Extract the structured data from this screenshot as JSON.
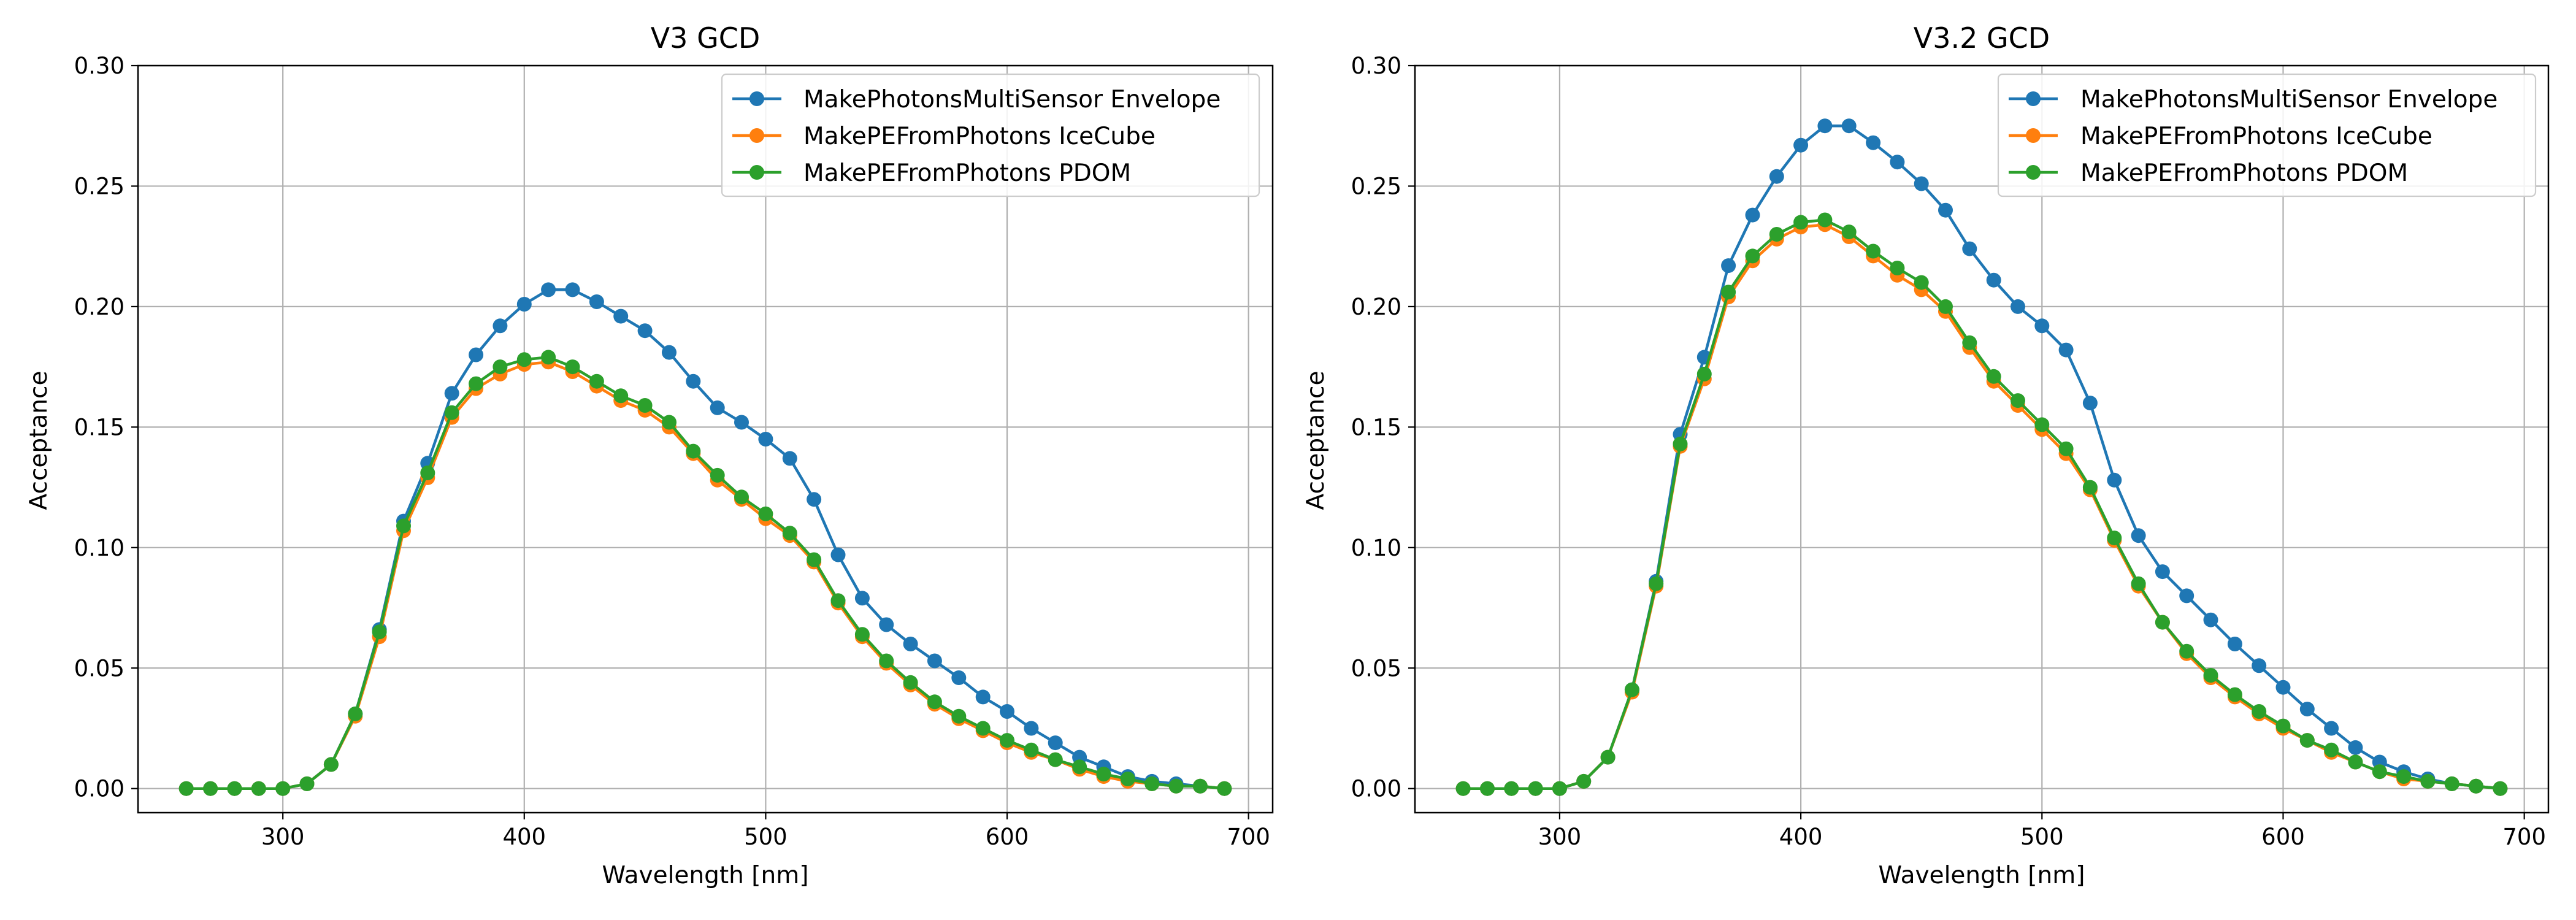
{
  "colors": {
    "envelope": "#1f77b4",
    "icecube": "#ff7f0e",
    "pdom": "#2ca02c",
    "grid": "#b0b0b0",
    "legend_border": "#cccccc"
  },
  "chart_data": [
    {
      "type": "line",
      "title": "V3 GCD",
      "xlabel": "Wavelength [nm]",
      "ylabel": "Acceptance",
      "xlim": [
        240,
        710
      ],
      "ylim": [
        -0.01,
        0.3
      ],
      "xticks": [
        300,
        400,
        500,
        600,
        700
      ],
      "yticks": [
        0.0,
        0.05,
        0.1,
        0.15,
        0.2,
        0.25,
        0.3
      ],
      "ytick_labels": [
        "0.00",
        "0.05",
        "0.10",
        "0.15",
        "0.20",
        "0.25",
        "0.30"
      ],
      "grid": true,
      "legend_position": "top-right",
      "x": [
        260,
        270,
        280,
        290,
        300,
        310,
        320,
        330,
        340,
        350,
        360,
        370,
        380,
        390,
        400,
        410,
        420,
        430,
        440,
        450,
        460,
        470,
        480,
        490,
        500,
        510,
        520,
        530,
        540,
        550,
        560,
        570,
        580,
        590,
        600,
        610,
        620,
        630,
        640,
        650,
        660,
        670,
        680,
        690
      ],
      "series": [
        {
          "name": "MakePhotonsMultiSensor Envelope",
          "color_key": "envelope",
          "values": [
            0.0,
            0.0,
            0.0,
            0.0,
            0.0,
            0.002,
            0.01,
            0.031,
            0.066,
            0.111,
            0.135,
            0.164,
            0.18,
            0.192,
            0.201,
            0.207,
            0.207,
            0.202,
            0.196,
            0.19,
            0.181,
            0.169,
            0.158,
            0.152,
            0.145,
            0.137,
            0.12,
            0.097,
            0.079,
            0.068,
            0.06,
            0.053,
            0.046,
            0.038,
            0.032,
            0.025,
            0.019,
            0.013,
            0.009,
            0.005,
            0.003,
            0.002,
            0.001,
            0.0
          ]
        },
        {
          "name": "MakePEFromPhotons IceCube",
          "color_key": "icecube",
          "values": [
            0.0,
            0.0,
            0.0,
            0.0,
            0.0,
            0.002,
            0.01,
            0.03,
            0.063,
            0.107,
            0.129,
            0.154,
            0.166,
            0.172,
            0.176,
            0.177,
            0.173,
            0.167,
            0.161,
            0.157,
            0.15,
            0.139,
            0.128,
            0.12,
            0.112,
            0.105,
            0.094,
            0.077,
            0.063,
            0.052,
            0.043,
            0.035,
            0.029,
            0.024,
            0.019,
            0.015,
            0.012,
            0.008,
            0.005,
            0.003,
            0.002,
            0.001,
            0.001,
            0.0
          ]
        },
        {
          "name": "MakePEFromPhotons PDOM",
          "color_key": "pdom",
          "values": [
            0.0,
            0.0,
            0.0,
            0.0,
            0.0,
            0.002,
            0.01,
            0.031,
            0.065,
            0.109,
            0.131,
            0.156,
            0.168,
            0.175,
            0.178,
            0.179,
            0.175,
            0.169,
            0.163,
            0.159,
            0.152,
            0.14,
            0.13,
            0.121,
            0.114,
            0.106,
            0.095,
            0.078,
            0.064,
            0.053,
            0.044,
            0.036,
            0.03,
            0.025,
            0.02,
            0.016,
            0.012,
            0.009,
            0.006,
            0.004,
            0.002,
            0.001,
            0.001,
            0.0
          ]
        }
      ]
    },
    {
      "type": "line",
      "title": "V3.2 GCD",
      "xlabel": "Wavelength [nm]",
      "ylabel": "Acceptance",
      "xlim": [
        240,
        710
      ],
      "ylim": [
        -0.01,
        0.3
      ],
      "xticks": [
        300,
        400,
        500,
        600,
        700
      ],
      "yticks": [
        0.0,
        0.05,
        0.1,
        0.15,
        0.2,
        0.25,
        0.3
      ],
      "ytick_labels": [
        "0.00",
        "0.05",
        "0.10",
        "0.15",
        "0.20",
        "0.25",
        "0.30"
      ],
      "grid": true,
      "legend_position": "top-right",
      "x": [
        260,
        270,
        280,
        290,
        300,
        310,
        320,
        330,
        340,
        350,
        360,
        370,
        380,
        390,
        400,
        410,
        420,
        430,
        440,
        450,
        460,
        470,
        480,
        490,
        500,
        510,
        520,
        530,
        540,
        550,
        560,
        570,
        580,
        590,
        600,
        610,
        620,
        630,
        640,
        650,
        660,
        670,
        680,
        690
      ],
      "series": [
        {
          "name": "MakePhotonsMultiSensor Envelope",
          "color_key": "envelope",
          "values": [
            0.0,
            0.0,
            0.0,
            0.0,
            0.0,
            0.003,
            0.013,
            0.041,
            0.086,
            0.147,
            0.179,
            0.217,
            0.238,
            0.254,
            0.267,
            0.275,
            0.275,
            0.268,
            0.26,
            0.251,
            0.24,
            0.224,
            0.211,
            0.2,
            0.192,
            0.182,
            0.16,
            0.128,
            0.105,
            0.09,
            0.08,
            0.07,
            0.06,
            0.051,
            0.042,
            0.033,
            0.025,
            0.017,
            0.011,
            0.007,
            0.004,
            0.002,
            0.001,
            0.0
          ]
        },
        {
          "name": "MakePEFromPhotons IceCube",
          "color_key": "icecube",
          "values": [
            0.0,
            0.0,
            0.0,
            0.0,
            0.0,
            0.003,
            0.013,
            0.04,
            0.084,
            0.142,
            0.17,
            0.204,
            0.219,
            0.228,
            0.233,
            0.234,
            0.229,
            0.221,
            0.213,
            0.207,
            0.198,
            0.183,
            0.169,
            0.159,
            0.149,
            0.139,
            0.124,
            0.103,
            0.084,
            0.069,
            0.056,
            0.046,
            0.038,
            0.031,
            0.025,
            0.02,
            0.015,
            0.011,
            0.007,
            0.004,
            0.003,
            0.002,
            0.001,
            0.0
          ]
        },
        {
          "name": "MakePEFromPhotons PDOM",
          "color_key": "pdom",
          "values": [
            0.0,
            0.0,
            0.0,
            0.0,
            0.0,
            0.003,
            0.013,
            0.041,
            0.085,
            0.143,
            0.172,
            0.206,
            0.221,
            0.23,
            0.235,
            0.236,
            0.231,
            0.223,
            0.216,
            0.21,
            0.2,
            0.185,
            0.171,
            0.161,
            0.151,
            0.141,
            0.125,
            0.104,
            0.085,
            0.069,
            0.057,
            0.047,
            0.039,
            0.032,
            0.026,
            0.02,
            0.016,
            0.011,
            0.007,
            0.005,
            0.003,
            0.002,
            0.001,
            0.0
          ]
        }
      ]
    }
  ]
}
